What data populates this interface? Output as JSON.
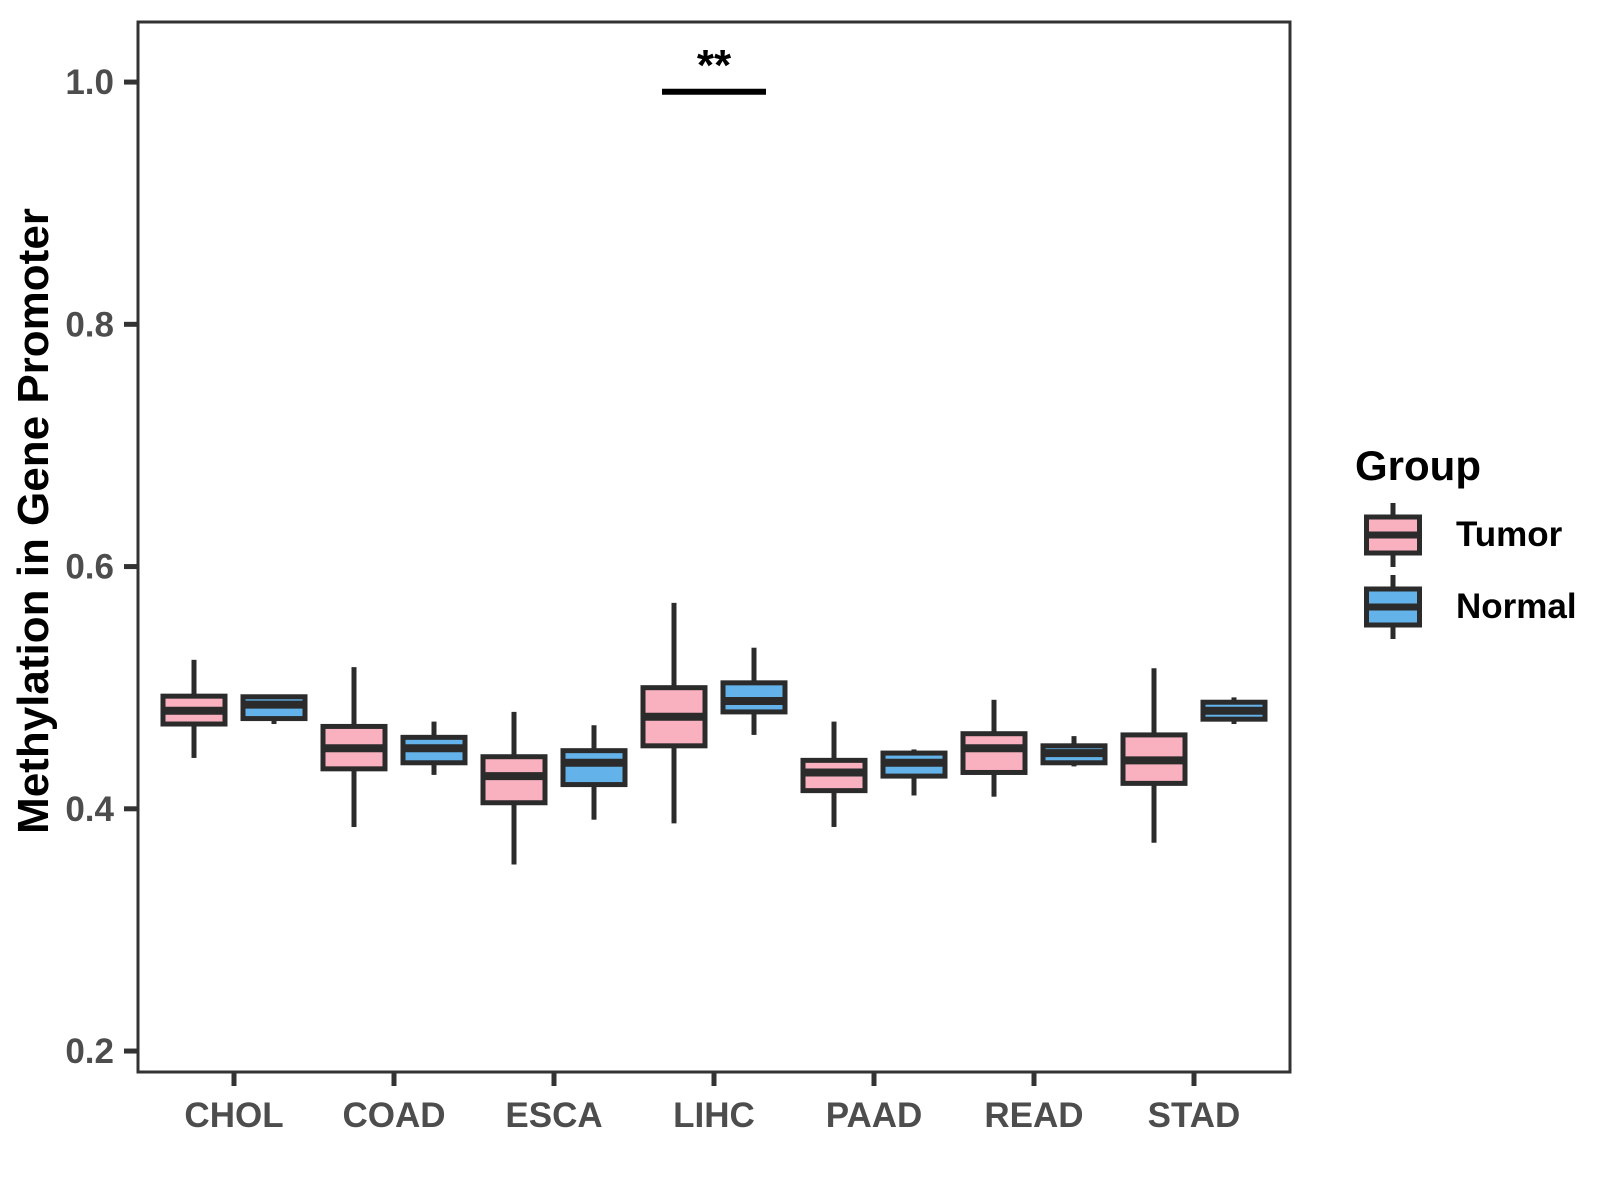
{
  "chart_data": {
    "type": "boxplot",
    "title": "",
    "xlabel": "",
    "ylabel": "Methylation in Gene Promoter",
    "categories": [
      "CHOL",
      "COAD",
      "ESCA",
      "LIHC",
      "PAAD",
      "READ",
      "STAD"
    ],
    "y_ticks": [
      1.0,
      0.8,
      0.6,
      0.4,
      0.2
    ],
    "y_tick_labels": [
      "1.0",
      "0.8",
      "0.6",
      "0.4",
      "0.2"
    ],
    "ylim": [
      0.1827,
      1.0496
    ],
    "grid": "off",
    "series": [
      {
        "name": "Tumor",
        "color": "#F9B1C0",
        "boxes": [
          {
            "whislo": 0.442,
            "q1": 0.47,
            "med": 0.481,
            "q3": 0.493,
            "whishi": 0.523
          },
          {
            "whislo": 0.385,
            "q1": 0.433,
            "med": 0.45,
            "q3": 0.468,
            "whishi": 0.517
          },
          {
            "whislo": 0.354,
            "q1": 0.405,
            "med": 0.427,
            "q3": 0.443,
            "whishi": 0.48
          },
          {
            "whislo": 0.388,
            "q1": 0.452,
            "med": 0.476,
            "q3": 0.5,
            "whishi": 0.57
          },
          {
            "whislo": 0.385,
            "q1": 0.415,
            "med": 0.43,
            "q3": 0.44,
            "whishi": 0.472
          },
          {
            "whislo": 0.41,
            "q1": 0.43,
            "med": 0.45,
            "q3": 0.462,
            "whishi": 0.49
          },
          {
            "whislo": 0.372,
            "q1": 0.421,
            "med": 0.44,
            "q3": 0.461,
            "whishi": 0.516
          }
        ]
      },
      {
        "name": "Normal",
        "color": "#63B3EA",
        "boxes": [
          {
            "whislo": 0.47,
            "q1": 0.4745,
            "med": 0.486,
            "q3": 0.4925,
            "whishi": 0.4925
          },
          {
            "whislo": 0.428,
            "q1": 0.438,
            "med": 0.45,
            "q3": 0.459,
            "whishi": 0.472
          },
          {
            "whislo": 0.391,
            "q1": 0.42,
            "med": 0.438,
            "q3": 0.448,
            "whishi": 0.469
          },
          {
            "whislo": 0.461,
            "q1": 0.48,
            "med": 0.489,
            "q3": 0.504,
            "whishi": 0.533
          },
          {
            "whislo": 0.411,
            "q1": 0.427,
            "med": 0.438,
            "q3": 0.446,
            "whishi": 0.449
          },
          {
            "whislo": 0.435,
            "q1": 0.438,
            "med": 0.446,
            "q3": 0.452,
            "whishi": 0.46
          },
          {
            "whislo": 0.47,
            "q1": 0.474,
            "med": 0.481,
            "q3": 0.488,
            "whishi": 0.492
          }
        ]
      }
    ],
    "legend": {
      "title": "Group",
      "position": "right",
      "entries": [
        "Tumor",
        "Normal"
      ]
    },
    "annotations": [
      {
        "type": "significance-bar",
        "label": "**",
        "category": "LIHC",
        "y": 0.992
      }
    ],
    "colors": {
      "box_border": "#2b2b2b",
      "panel_border": "#333333",
      "axis_text": "#4d4d4d",
      "annotation": "#000000"
    }
  }
}
